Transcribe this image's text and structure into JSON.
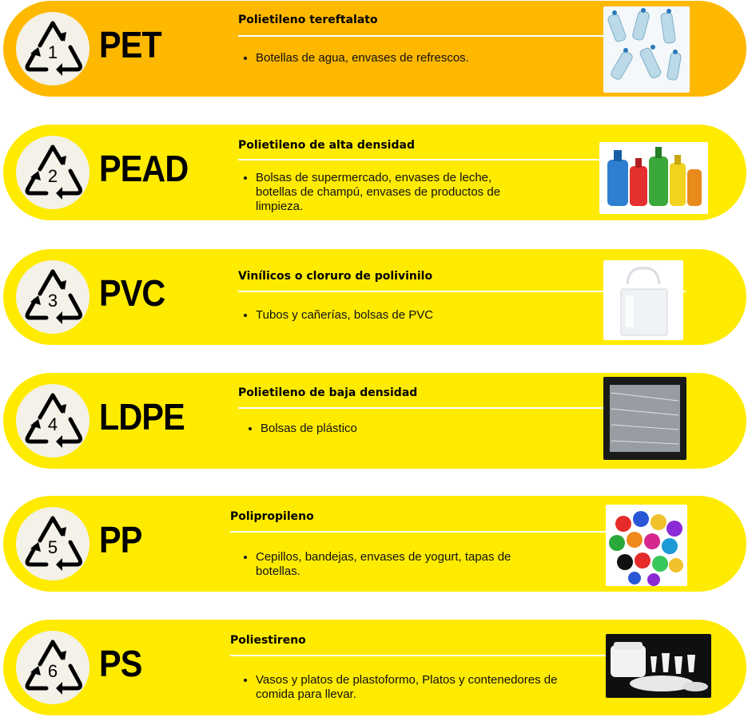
{
  "items": [
    {
      "number": "1",
      "code": "PET",
      "title": "Polietileno tereftalato",
      "description": "Botellas de agua, envases de refrescos.",
      "image": "water-bottles-photo"
    },
    {
      "number": "2",
      "code": "PEAD",
      "title": "Polietileno de alta densidad",
      "description": "Bolsas de supermercado, envases de leche, botellas de champú, envases de productos de limpieza.",
      "image": "detergent-bottles-photo"
    },
    {
      "number": "3",
      "code": "PVC",
      "title": "Vinílicos o cloruro de polivinilo",
      "description": "Tubos y cañerías, bolsas de PVC",
      "image": "pvc-bag-photo"
    },
    {
      "number": "4",
      "code": "LDPE",
      "title": "Polietileno de baja densidad",
      "description": "Bolsas de plástico",
      "image": "plastic-bags-photo"
    },
    {
      "number": "5",
      "code": "PP",
      "title": "Polipropileno",
      "description": "Cepillos, bandejas, envases de yogurt, tapas de botellas.",
      "image": "bottle-caps-photo"
    },
    {
      "number": "6",
      "code": "PS",
      "title": "Poliestireno",
      "description": "Vasos y platos de plastoformo,  Platos y contenedores de comida para llevar.",
      "image": "foam-containers-photo"
    }
  ],
  "colors": {
    "first_card": "#ffb800",
    "card": "#ffeb00",
    "badge": "#f3f1e8"
  }
}
